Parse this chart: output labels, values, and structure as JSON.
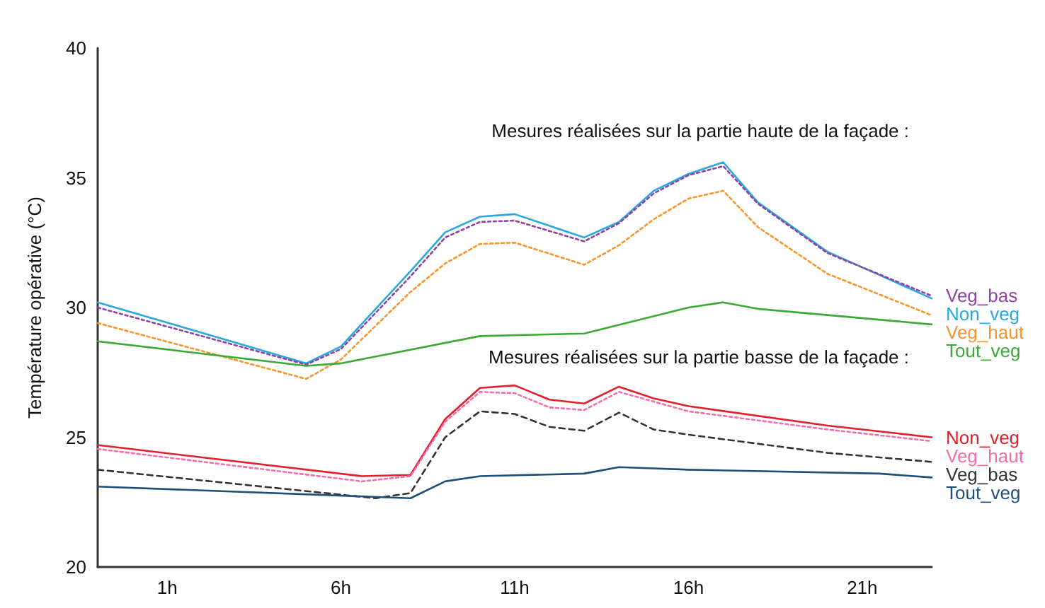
{
  "chart_data": {
    "type": "line",
    "ylabel": "Température opérative (°C)",
    "annotations": [
      "Mesures réalisées sur la partie haute de la façade :",
      "Mesures réalisées sur la partie basse de la façade :"
    ],
    "xlim": [
      -1,
      23
    ],
    "xticks": [
      {
        "value": 1,
        "label": "1h"
      },
      {
        "value": 6,
        "label": "6h"
      },
      {
        "value": 11,
        "label": "11h"
      },
      {
        "value": 16,
        "label": "16h"
      },
      {
        "value": 21,
        "label": "21h"
      }
    ],
    "ylim": [
      20,
      40
    ],
    "yticks": [
      20,
      25,
      30,
      35,
      40
    ],
    "grid": false,
    "legend": false,
    "marker": "none",
    "series": [
      {
        "name": "Non_veg",
        "color": "#29a8e0",
        "line_style": "solid",
        "x": [
          -1,
          5,
          6,
          8,
          9,
          10,
          11,
          13,
          14,
          15,
          16,
          17,
          18,
          20,
          23
        ],
        "values": [
          30.2,
          27.85,
          28.5,
          31.4,
          32.9,
          33.5,
          33.6,
          32.7,
          33.3,
          34.5,
          35.15,
          35.6,
          34.05,
          32.15,
          30.35
        ]
      },
      {
        "name": "Veg_bas",
        "color": "#8e44a0",
        "line_style": "dotted",
        "x": [
          -1,
          5,
          6,
          8,
          9,
          10,
          11,
          13,
          14,
          15,
          16,
          17,
          18,
          20,
          23
        ],
        "values": [
          30.0,
          27.8,
          28.4,
          31.2,
          32.7,
          33.3,
          33.35,
          32.55,
          33.25,
          34.4,
          35.1,
          35.45,
          34.0,
          32.1,
          30.45
        ]
      },
      {
        "name": "Veg_haut",
        "color": "#f7942c",
        "line_style": "dotted",
        "x": [
          -1,
          5,
          6,
          8,
          9,
          10,
          11,
          13,
          14,
          15,
          16,
          17,
          18,
          20,
          23
        ],
        "values": [
          29.4,
          27.25,
          28.0,
          30.6,
          31.7,
          32.45,
          32.5,
          31.65,
          32.4,
          33.4,
          34.2,
          34.5,
          33.1,
          31.3,
          29.7
        ]
      },
      {
        "name": "Tout_veg",
        "color": "#3aaa35",
        "line_style": "solid",
        "x": [
          -1,
          5,
          6,
          10,
          13,
          16,
          17,
          18,
          23
        ],
        "values": [
          28.7,
          27.75,
          27.85,
          28.9,
          29.0,
          30.0,
          30.2,
          29.95,
          29.35
        ]
      },
      {
        "name": "Non_veg",
        "color": "#e2202c",
        "line_style": "solid",
        "x": [
          -1,
          6.6,
          8,
          9,
          10,
          11,
          12,
          13,
          14,
          15,
          16,
          20,
          23
        ],
        "values": [
          24.7,
          23.5,
          23.55,
          25.7,
          26.9,
          27.0,
          26.45,
          26.3,
          26.95,
          26.5,
          26.2,
          25.45,
          25.0
        ]
      },
      {
        "name": "Veg_haut",
        "color": "#f06fa8",
        "line_style": "dotted",
        "x": [
          -1,
          6.6,
          8,
          9,
          10,
          11,
          12,
          13,
          14,
          16,
          20,
          23
        ],
        "values": [
          24.55,
          23.3,
          23.5,
          25.6,
          26.75,
          26.7,
          26.15,
          26.05,
          26.75,
          26.0,
          25.3,
          24.85
        ]
      },
      {
        "name": "Veg_bas",
        "color": "#333333",
        "line_style": "dashed",
        "x": [
          -1,
          7,
          8,
          9,
          10,
          11,
          12,
          13,
          14,
          15,
          16,
          20,
          23
        ],
        "values": [
          23.75,
          22.65,
          22.85,
          25.0,
          26.0,
          25.9,
          25.4,
          25.25,
          25.95,
          25.3,
          25.1,
          24.4,
          24.05
        ]
      },
      {
        "name": "Tout_veg",
        "color": "#1f4e79",
        "line_style": "solid",
        "x": [
          -1,
          8,
          9,
          10,
          13,
          14,
          16,
          21.5,
          23
        ],
        "values": [
          23.1,
          22.65,
          23.3,
          23.5,
          23.6,
          23.85,
          23.75,
          23.6,
          23.45
        ]
      }
    ]
  }
}
